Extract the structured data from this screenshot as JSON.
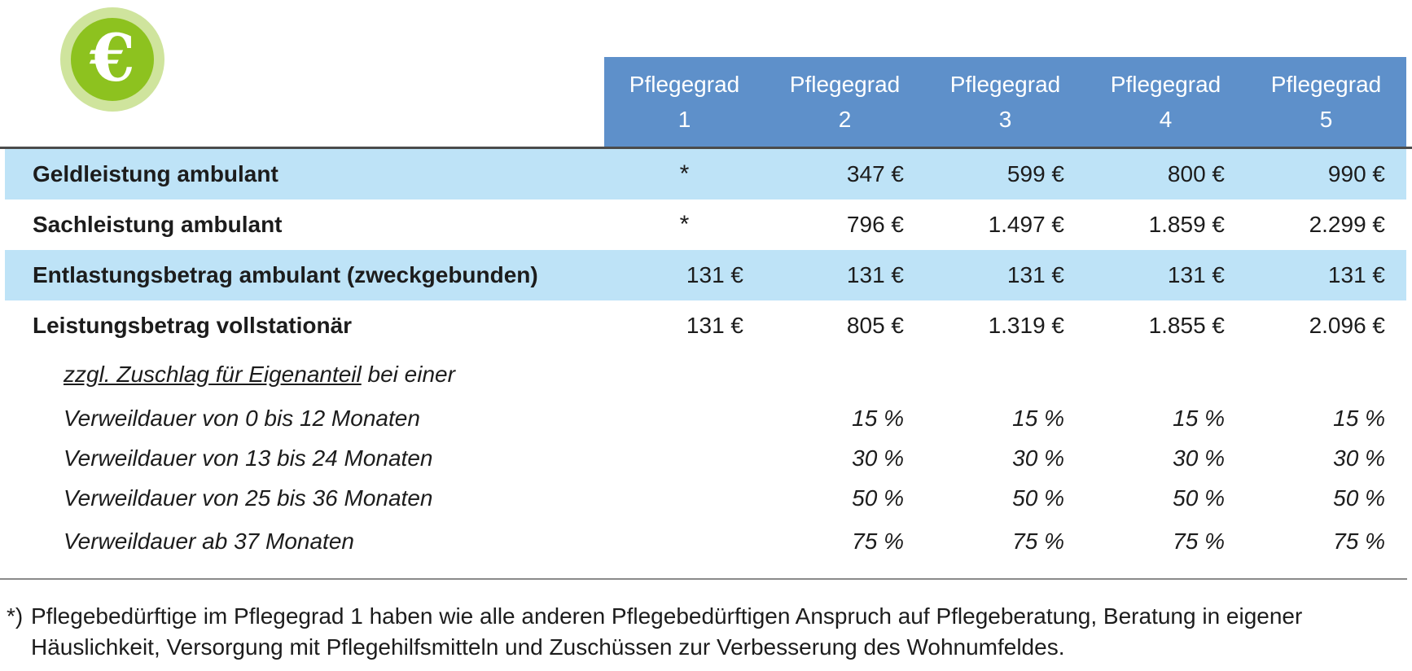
{
  "icon": {
    "name": "euro-icon",
    "glyph": "€",
    "circle_color": "#8dc21f",
    "ring_color": "#cfe49d"
  },
  "colors": {
    "header_blue": "#5e90ca",
    "row_highlight_blue": "#bee3f7",
    "divider_dark": "#4b4b4b",
    "divider_gray": "#8a8a8a",
    "text": "#1c1c1c",
    "header_text": "#ffffff"
  },
  "chart_data": {
    "type": "table",
    "columns": [
      {
        "line1": "Pflegegrad",
        "line2": "1"
      },
      {
        "line1": "Pflegegrad",
        "line2": "2"
      },
      {
        "line1": "Pflegegrad",
        "line2": "3"
      },
      {
        "line1": "Pflegegrad",
        "line2": "4"
      },
      {
        "line1": "Pflegegrad",
        "line2": "5"
      }
    ],
    "rows": [
      {
        "label": "Geldleistung ambulant",
        "style": "highlight",
        "values": [
          "*",
          "347 €",
          "599 €",
          "800 €",
          "990 €"
        ]
      },
      {
        "label": "Sachleistung ambulant",
        "style": "plain",
        "values": [
          "*",
          "796 €",
          "1.497 €",
          "1.859 €",
          "2.299 €"
        ]
      },
      {
        "label": "Entlastungsbetrag ambulant (zweckgebunden)",
        "style": "highlight",
        "values": [
          "131 €",
          "131 €",
          "131 €",
          "131 €",
          "131 €"
        ]
      },
      {
        "label": "Leistungsbetrag vollstationär",
        "style": "plain",
        "values": [
          "131 €",
          "805 €",
          "1.319 €",
          "1.855 €",
          "2.096 €"
        ]
      },
      {
        "label_underlined": "zzgl. Zuschlag für Eigenanteil",
        "label_rest": " bei einer",
        "style": "italic-intro",
        "values": [
          "",
          "",
          "",
          "",
          ""
        ]
      },
      {
        "label": "Verweildauer von 0 bis 12 Monaten",
        "style": "italic",
        "values": [
          "",
          "15 %",
          "15 %",
          "15 %",
          "15 %"
        ]
      },
      {
        "label": "Verweildauer von 13 bis 24 Monaten",
        "style": "italic",
        "values": [
          "",
          "30 %",
          "30 %",
          "30 %",
          "30 %"
        ]
      },
      {
        "label": "Verweildauer von 25 bis 36 Monaten",
        "style": "italic",
        "values": [
          "",
          "50 %",
          "50 %",
          "50 %",
          "50 %"
        ]
      },
      {
        "label": "Verweildauer ab 37 Monaten",
        "style": "italic",
        "values": [
          "",
          "75 %",
          "75 %",
          "75 %",
          "75 %"
        ]
      }
    ],
    "footnote_marker": "*)",
    "footnote_text": "Pflegebedürftige im Pflegegrad 1 haben wie alle anderen Pflegebedürftigen Anspruch auf Pflegeberatung, Beratung in eigener Häuslichkeit, Versorgung mit Pflegehilfsmitteln und Zuschüssen zur Verbesserung des Wohnumfeldes."
  }
}
